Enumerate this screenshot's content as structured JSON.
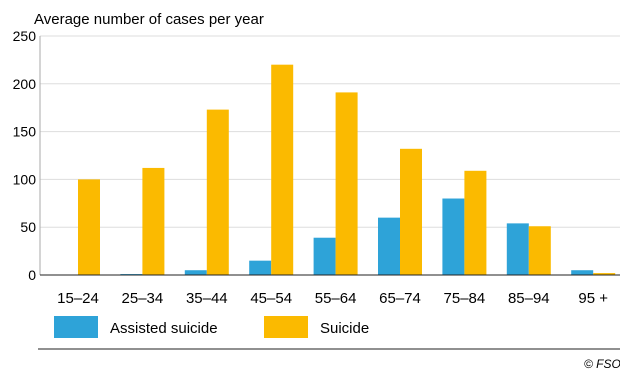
{
  "chart_data": {
    "type": "bar",
    "ylabel": "Average number of cases per year",
    "xlabel": "",
    "categories": [
      "15–24",
      "25–34",
      "35–44",
      "45–54",
      "55–64",
      "65–74",
      "75–84",
      "85–94",
      "95 +"
    ],
    "series": [
      {
        "name": "Assisted suicide",
        "color": "#2ea3d8",
        "values": [
          0,
          1,
          5,
          15,
          39,
          60,
          80,
          54,
          5
        ]
      },
      {
        "name": "Suicide",
        "color": "#fbba00",
        "values": [
          100,
          112,
          173,
          220,
          191,
          132,
          109,
          51,
          2
        ]
      }
    ],
    "ylim": [
      0,
      250
    ],
    "yticks": [
      0,
      50,
      100,
      150,
      200,
      250
    ],
    "grid": true,
    "gridline_color": "#dddddd",
    "legend_position": "bottom-left",
    "credit": "© FSO"
  }
}
